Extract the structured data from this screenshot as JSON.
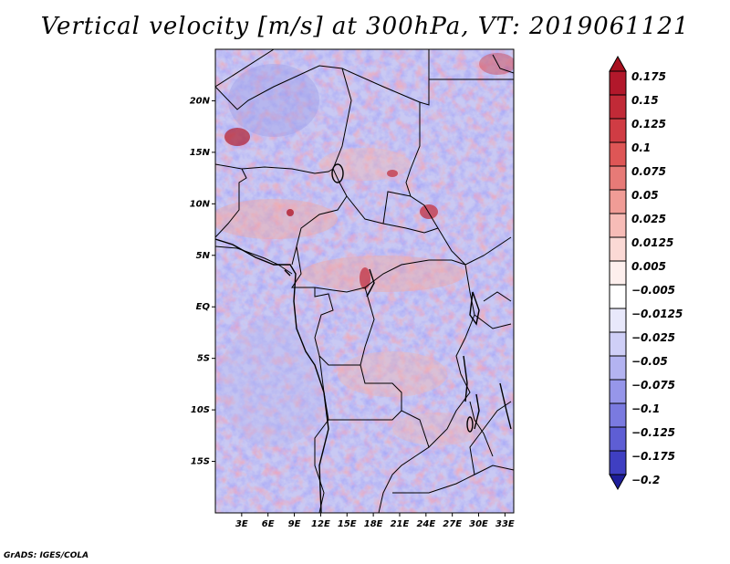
{
  "title": "Vertical velocity [m/s] at 300hPa, VT: 2019061121",
  "credit": "GrADS: IGES/COLA",
  "map": {
    "lat_range": [
      -20,
      25
    ],
    "lon_range": [
      0,
      34
    ],
    "lat_ticks": [
      {
        "value": 20,
        "label": "20N"
      },
      {
        "value": 15,
        "label": "15N"
      },
      {
        "value": 10,
        "label": "10N"
      },
      {
        "value": 5,
        "label": "5N"
      },
      {
        "value": 0,
        "label": "EQ"
      },
      {
        "value": -5,
        "label": "5S"
      },
      {
        "value": -10,
        "label": "10S"
      },
      {
        "value": -15,
        "label": "15S"
      }
    ],
    "lon_ticks": [
      {
        "value": 3,
        "label": "3E"
      },
      {
        "value": 6,
        "label": "6E"
      },
      {
        "value": 9,
        "label": "9E"
      },
      {
        "value": 12,
        "label": "12E"
      },
      {
        "value": 15,
        "label": "15E"
      },
      {
        "value": 18,
        "label": "18E"
      },
      {
        "value": 21,
        "label": "21E"
      },
      {
        "value": 24,
        "label": "24E"
      },
      {
        "value": 27,
        "label": "27E"
      },
      {
        "value": 30,
        "label": "30E"
      },
      {
        "value": 33,
        "label": "33E"
      }
    ]
  },
  "colorbar": {
    "levels": [
      {
        "label": "0.175",
        "color": "#b2182b"
      },
      {
        "label": "0.15",
        "color": "#c12a37"
      },
      {
        "label": "0.125",
        "color": "#d03c44"
      },
      {
        "label": "0.1",
        "color": "#de5656"
      },
      {
        "label": "0.075",
        "color": "#e77a77"
      },
      {
        "label": "0.05",
        "color": "#f09c96"
      },
      {
        "label": "0.025",
        "color": "#f7bcb7"
      },
      {
        "label": "0.0125",
        "color": "#fbd9d5"
      },
      {
        "label": "0.005",
        "color": "#fdefed"
      },
      {
        "label": "−0.005",
        "color": "#ffffff"
      },
      {
        "label": "−0.0125",
        "color": "#e8e8fb"
      },
      {
        "label": "−0.025",
        "color": "#cfcff7"
      },
      {
        "label": "−0.05",
        "color": "#b3b3f1"
      },
      {
        "label": "−0.075",
        "color": "#9696ea"
      },
      {
        "label": "−0.1",
        "color": "#7a7ae0"
      },
      {
        "label": "−0.125",
        "color": "#5e5ed4"
      },
      {
        "label": "−0.175",
        "color": "#3f3fc2"
      },
      {
        "label": "−0.2",
        "color": "#2a2aa8"
      }
    ],
    "top_color": "#a8101f",
    "bottom_color": "#1e1e9a"
  }
}
